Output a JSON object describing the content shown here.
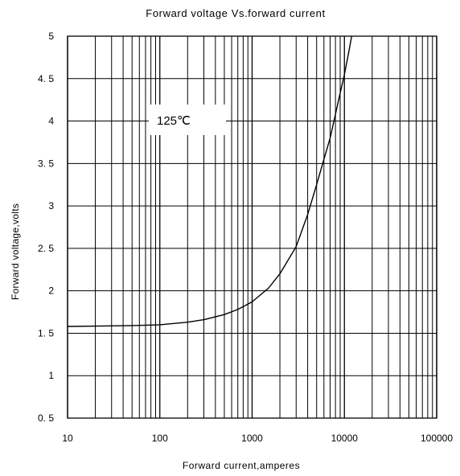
{
  "chart_data": {
    "type": "line",
    "title": "Forward voltage Vs.forward current",
    "xlabel": "Forward current,amperes",
    "ylabel": "Forward voltage,volts",
    "x_scale": "log",
    "xlim": [
      10,
      100000
    ],
    "ylim": [
      0.5,
      5
    ],
    "x_ticks": [
      10,
      100,
      1000,
      10000,
      100000
    ],
    "x_tick_labels": [
      "10",
      "100",
      "1000",
      "10000",
      "100000"
    ],
    "y_ticks": [
      0.5,
      1,
      1.5,
      2,
      2.5,
      3,
      3.5,
      4,
      4.5,
      5
    ],
    "y_tick_labels": [
      "0. 5",
      "1",
      "1. 5",
      "2",
      "2. 5",
      "3",
      "3. 5",
      "4",
      "4. 5",
      "5"
    ],
    "grid": true,
    "annotation": "125℃",
    "series": [
      {
        "x": [
          10,
          50,
          100,
          200,
          300,
          500,
          700,
          1000,
          1500,
          2000,
          3000,
          4000,
          5000,
          6000,
          7000,
          8000,
          9000,
          10000,
          11000,
          12000
        ],
        "y": [
          1.58,
          1.59,
          1.6,
          1.63,
          1.66,
          1.72,
          1.78,
          1.87,
          2.03,
          2.2,
          2.52,
          2.9,
          3.25,
          3.55,
          3.8,
          4.08,
          4.33,
          4.55,
          4.78,
          5.0
        ]
      }
    ]
  },
  "colors": {
    "line": "#000000",
    "grid": "#000000",
    "background": "#ffffff"
  }
}
